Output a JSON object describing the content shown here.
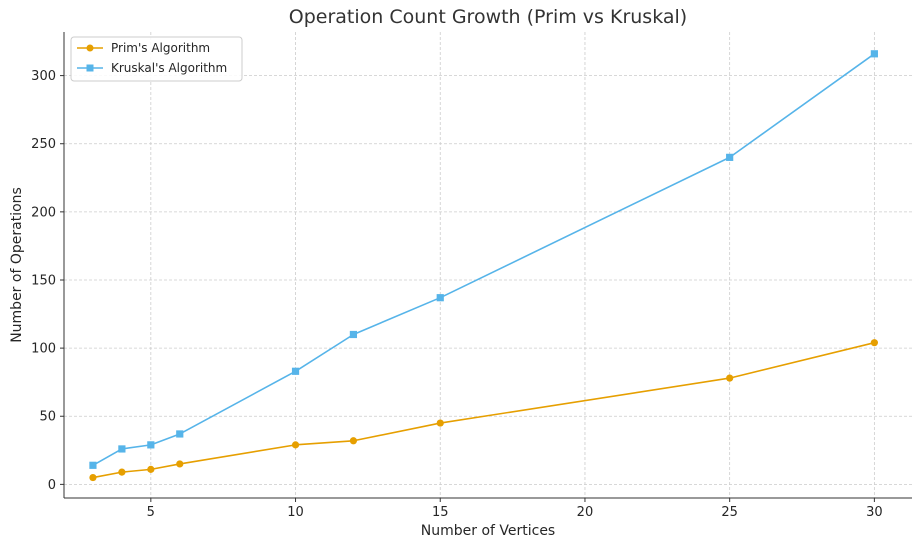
{
  "chart_data": {
    "type": "line",
    "title": "Operation Count Growth (Prim vs Kruskal)",
    "xlabel": "Number of Vertices",
    "ylabel": "Number of Operations",
    "xlim": [
      2.0,
      31.3
    ],
    "ylim": [
      -10,
      332
    ],
    "xticks": [
      5,
      10,
      15,
      20,
      25,
      30
    ],
    "yticks": [
      0,
      50,
      100,
      150,
      200,
      250,
      300
    ],
    "grid": true,
    "legend_position": "top-left",
    "x": [
      3,
      4,
      5,
      6,
      10,
      12,
      15,
      25,
      30
    ],
    "series": [
      {
        "name": "Prim's Algorithm",
        "color": "#E69F00",
        "marker": "circle",
        "values": [
          5,
          9,
          11,
          15,
          29,
          32,
          45,
          78,
          104
        ]
      },
      {
        "name": "Kruskal's Algorithm",
        "color": "#56B4E9",
        "marker": "square",
        "values": [
          14,
          26,
          29,
          37,
          83,
          110,
          137,
          240,
          316
        ]
      }
    ]
  }
}
